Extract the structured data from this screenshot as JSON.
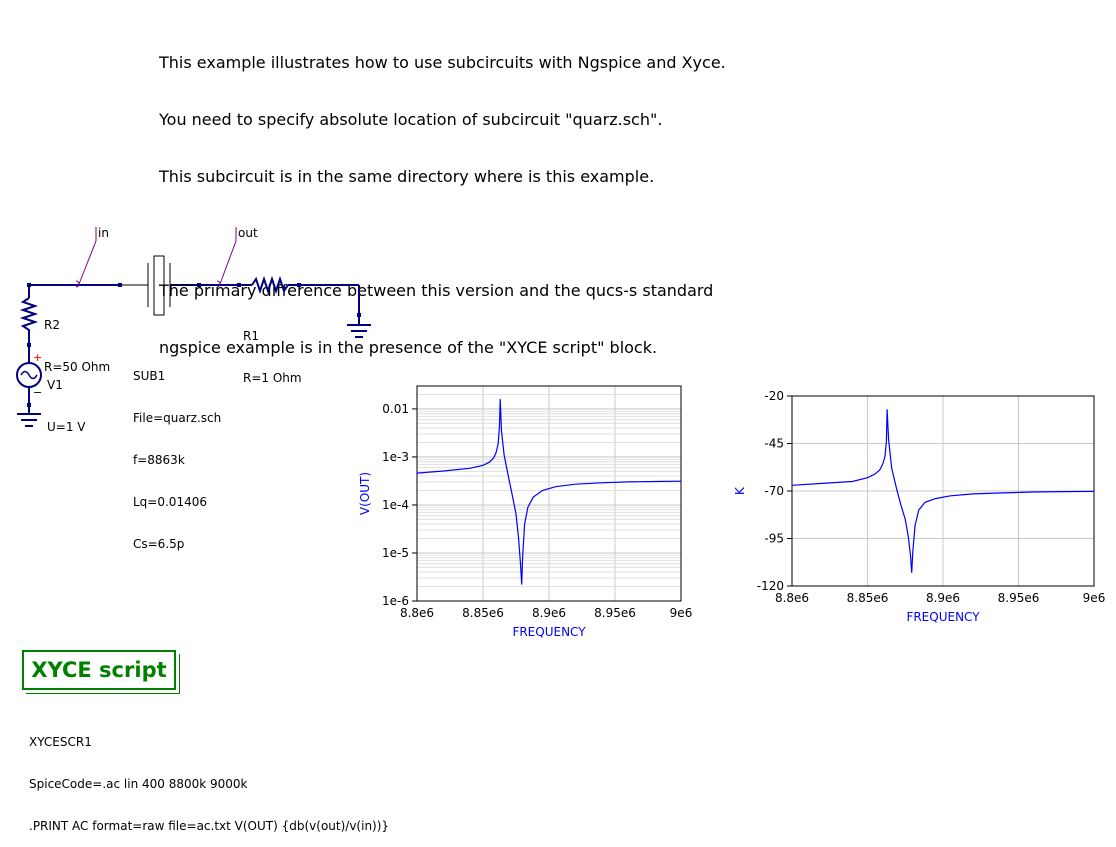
{
  "note": {
    "lines": [
      "This example illustrates how to use subcircuits with Ngspice and Xyce.",
      "You need to specify absolute location of subcircuit \"quarz.sch\".",
      "This subcircuit is in the same directory where is this example.",
      "",
      "The primary difference between this version and the qucs-s standard",
      "ngspice example is in the presence of the \"XYCE script\" block."
    ]
  },
  "labels": {
    "in": "in",
    "out": "out"
  },
  "components": {
    "r2": {
      "name": "R2",
      "value": "R=50 Ohm"
    },
    "v1": {
      "name": "V1",
      "value": "U=1 V",
      "plus": "+",
      "minus": "−"
    },
    "sub1": {
      "name": "SUB1",
      "file": "File=quarz.sch",
      "f": "f=8863k",
      "lq": "Lq=0.01406",
      "cs": "Cs=6.5p"
    },
    "r1": {
      "name": "R1",
      "value": "R=1 Ohm"
    }
  },
  "xyce": {
    "title": "XYCE script",
    "name": "XYCESCR1",
    "code": "SpiceCode=.ac lin 400 8800k 9000k",
    "print": ".PRINT AC format=raw file=ac.txt V(OUT) {db(v(out)/v(in))}"
  },
  "colors": {
    "wire": "#000080",
    "label": "#800080",
    "curve": "#0000ff",
    "grid": "#c8c8c8",
    "xyce": "#008000"
  },
  "chart_data": [
    {
      "type": "line",
      "scale": "log",
      "xlabel": "FREQUENCY",
      "ylabel": "V(OUT)",
      "xlim": [
        8800000,
        9000000
      ],
      "ylim": [
        1e-06,
        0.03
      ],
      "xticks": [
        "8.8e6",
        "8.85e6",
        "8.9e6",
        "8.95e6",
        "9e6"
      ],
      "yticks": [
        "0.01",
        "1e-3",
        "1e-4",
        "1e-5",
        "1e-6"
      ],
      "grid": true,
      "series": [
        {
          "x": [
            8800000,
            8820000,
            8840000,
            8850000,
            8855000,
            8858000,
            8860000,
            8861500,
            8862500,
            8863000,
            8864000,
            8866000,
            8869000,
            8872000,
            8875000,
            8877000,
            8878500,
            8879300,
            8880000,
            8881500,
            8884000,
            8888000,
            8895000,
            8905000,
            8920000,
            8940000,
            8960000,
            8980000,
            9000000
          ],
          "y": [
            0.00046,
            0.00051,
            0.00058,
            0.00067,
            0.00078,
            0.00095,
            0.00125,
            0.0019,
            0.0045,
            0.016,
            0.0035,
            0.0011,
            0.00042,
            0.00017,
            6.5e-05,
            2e-05,
            5.5e-06,
            2.2e-06,
            8e-06,
            4e-05,
            9e-05,
            0.000145,
            0.0002,
            0.00024,
            0.00027,
            0.00029,
            0.000302,
            0.000308,
            0.000312
          ]
        }
      ]
    },
    {
      "type": "line",
      "xlabel": "FREQUENCY",
      "ylabel": "K",
      "xlim": [
        8800000,
        9000000
      ],
      "ylim": [
        -120,
        -20
      ],
      "xticks": [
        "8.8e6",
        "8.85e6",
        "8.9e6",
        "8.95e6",
        "9e6"
      ],
      "yticks": [
        "-20",
        "-45",
        "-70",
        "-95",
        "-120"
      ],
      "grid": true,
      "series": [
        {
          "x": [
            8800000,
            8820000,
            8840000,
            8850000,
            8855000,
            8858000,
            8860000,
            8861500,
            8862500,
            8863000,
            8864000,
            8866000,
            8869000,
            8872000,
            8875000,
            8877000,
            8878500,
            8879300,
            8880000,
            8881500,
            8884000,
            8888000,
            8895000,
            8905000,
            8920000,
            8940000,
            8960000,
            8980000,
            9000000
          ],
          "y": [
            -67,
            -66,
            -65,
            -63,
            -61,
            -59,
            -56,
            -52,
            -44,
            -27,
            -43,
            -58,
            -68,
            -77,
            -85,
            -94,
            -104,
            -113,
            -102,
            -88,
            -80,
            -76,
            -74,
            -72.5,
            -71.5,
            -71,
            -70.5,
            -70.3,
            -70.2
          ]
        }
      ]
    }
  ]
}
